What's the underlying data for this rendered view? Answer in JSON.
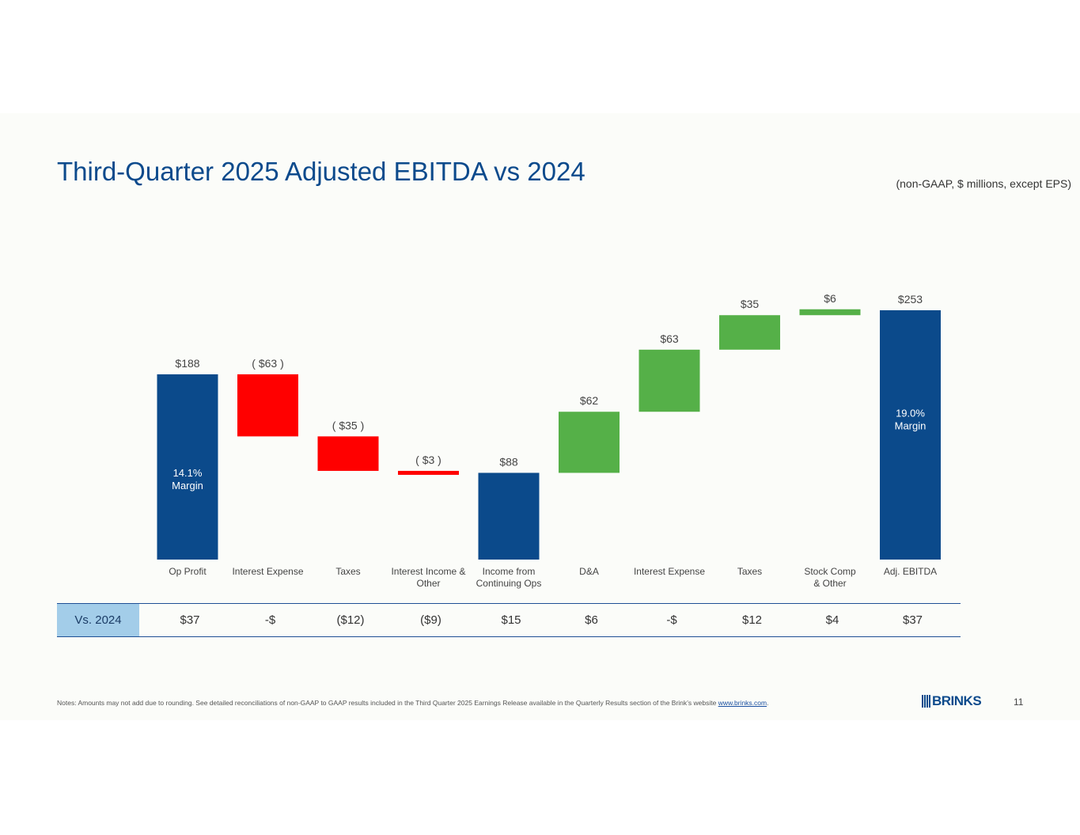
{
  "title": "Third-Quarter 2025 Adjusted EBITDA vs 2024",
  "subtitle": "(non-GAAP, $ millions, except EPS)",
  "chart_data": {
    "type": "waterfall",
    "title": "Third-Quarter 2025 Adjusted EBITDA vs 2024",
    "units": "$ millions",
    "items": [
      {
        "category": "Op Profit",
        "value": 188,
        "kind": "total",
        "label": "$188",
        "note": "14.1%\nMargin"
      },
      {
        "category": "Interest Expense",
        "value": -63,
        "kind": "decrease",
        "label": "( $63 )"
      },
      {
        "category": "Taxes",
        "value": -35,
        "kind": "decrease",
        "label": "( $35 )"
      },
      {
        "category": "Interest Income &\nOther",
        "value": -3,
        "kind": "decrease",
        "label": "( $3 )"
      },
      {
        "category": "Income from\nContinuing Ops",
        "value": 88,
        "kind": "total",
        "label": "$88"
      },
      {
        "category": "D&A",
        "value": 62,
        "kind": "increase",
        "label": "$62"
      },
      {
        "category": "Interest Expense",
        "value": 63,
        "kind": "increase",
        "label": "$63"
      },
      {
        "category": "Taxes",
        "value": 35,
        "kind": "increase",
        "label": "$35"
      },
      {
        "category": "Stock Comp\n& Other",
        "value": 6,
        "kind": "increase",
        "label": "$6"
      },
      {
        "category": "Adj. EBITDA",
        "value": 253,
        "kind": "total",
        "label": "$253",
        "note": "19.0%\nMargin"
      }
    ],
    "colors": {
      "total": "#0b4a8b",
      "decrease": "#ff0000",
      "increase": "#55b048"
    },
    "ylim": [
      0,
      253
    ]
  },
  "vs_table": {
    "header": "Vs. 2024",
    "values": [
      "$37",
      "-$",
      "($12)",
      "($9)",
      "$15",
      "$6",
      "-$",
      "$12",
      "$4",
      "$37"
    ]
  },
  "notes": {
    "text": "Notes: Amounts may not add due to rounding. See detailed reconciliations of non-GAAP to GAAP results included in the Third Quarter 2025 Earnings Release available in the Quarterly Results section of the Brink’s website ",
    "link": "www.brinks.com",
    "end": "."
  },
  "logo_text": "BRINKS",
  "page_number": "11"
}
